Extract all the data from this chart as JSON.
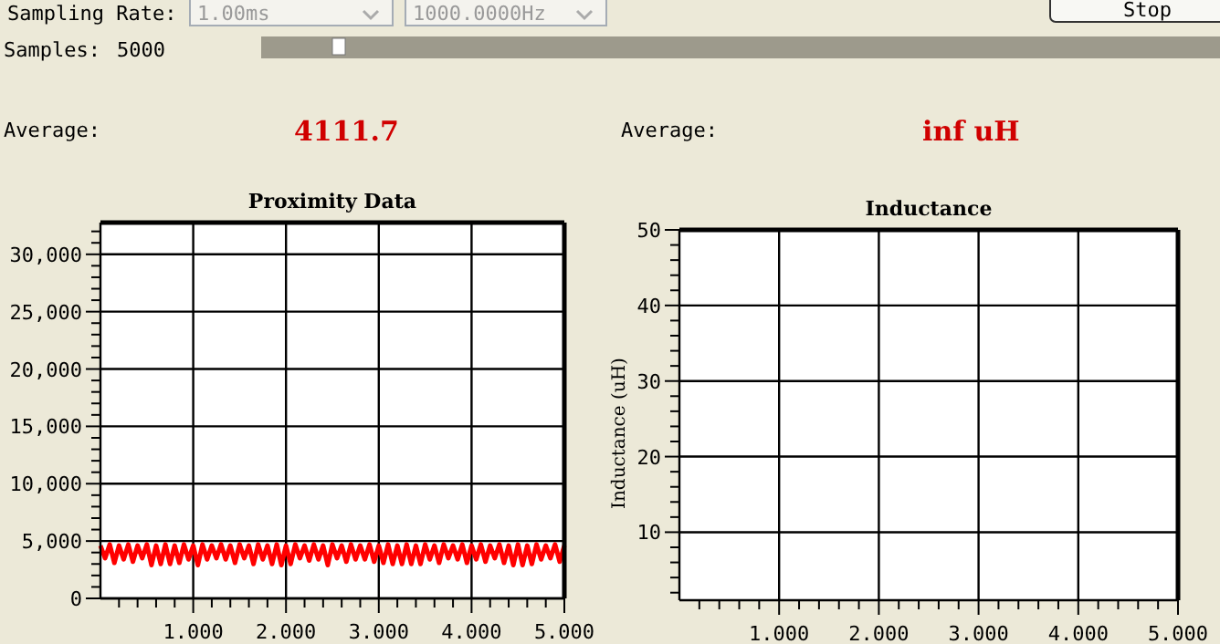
{
  "chart_data": [
    {
      "type": "other",
      "annotations": [
        "Sampling Rate:",
        "1.00ms",
        "1000.0000Hz",
        "Stop",
        "Samples:",
        "5000",
        "Average:",
        "4111.7",
        "Average:",
        "inf uH"
      ]
    },
    {
      "type": "line",
      "title": "Proximity Data",
      "xlim": [
        0,
        5
      ],
      "ylim": [
        0,
        32768
      ],
      "xticks": [
        {
          "value": 0.2,
          "label": null
        },
        {
          "value": 0.4,
          "label": null
        },
        {
          "value": 0.6,
          "label": null
        },
        {
          "value": 0.8,
          "label": null
        },
        {
          "value": 1,
          "label": "1.000"
        },
        {
          "value": 1.2,
          "label": null
        },
        {
          "value": 1.4,
          "label": null
        },
        {
          "value": 1.6,
          "label": null
        },
        {
          "value": 1.8,
          "label": null
        },
        {
          "value": 2,
          "label": "2.000"
        },
        {
          "value": 2.2,
          "label": null
        },
        {
          "value": 2.4,
          "label": null
        },
        {
          "value": 2.6,
          "label": null
        },
        {
          "value": 2.8,
          "label": null
        },
        {
          "value": 3,
          "label": "3.000"
        },
        {
          "value": 3.2,
          "label": null
        },
        {
          "value": 3.4,
          "label": null
        },
        {
          "value": 3.6,
          "label": null
        },
        {
          "value": 3.8,
          "label": null
        },
        {
          "value": 4,
          "label": "4.000"
        },
        {
          "value": 4.2,
          "label": null
        },
        {
          "value": 4.4,
          "label": null
        },
        {
          "value": 4.6,
          "label": null
        },
        {
          "value": 4.8,
          "label": null
        },
        {
          "value": 5,
          "label": "5.000"
        }
      ],
      "yticks": [
        0,
        {
          "value": 1000,
          "label": null
        },
        {
          "value": 2000,
          "label": null
        },
        {
          "value": 3000,
          "label": null
        },
        {
          "value": 4000,
          "label": null
        },
        {
          "value": 5000,
          "label": "5,000"
        },
        {
          "value": 6000,
          "label": null
        },
        {
          "value": 7000,
          "label": null
        },
        {
          "value": 8000,
          "label": null
        },
        {
          "value": 9000,
          "label": null
        },
        {
          "value": 10000,
          "label": "10,000"
        },
        {
          "value": 11000,
          "label": null
        },
        {
          "value": 12000,
          "label": null
        },
        {
          "value": 13000,
          "label": null
        },
        {
          "value": 14000,
          "label": null
        },
        {
          "value": 15000,
          "label": "15,000"
        },
        {
          "value": 16000,
          "label": null
        },
        {
          "value": 17000,
          "label": null
        },
        {
          "value": 18000,
          "label": null
        },
        {
          "value": 19000,
          "label": null
        },
        {
          "value": 20000,
          "label": "20,000"
        },
        {
          "value": 21000,
          "label": null
        },
        {
          "value": 22000,
          "label": null
        },
        {
          "value": 23000,
          "label": null
        },
        {
          "value": 24000,
          "label": null
        },
        {
          "value": 25000,
          "label": "25,000"
        },
        {
          "value": 26000,
          "label": null
        },
        {
          "value": 27000,
          "label": null
        },
        {
          "value": 28000,
          "label": null
        },
        {
          "value": 29000,
          "label": null
        },
        {
          "value": 30000,
          "label": "30,000"
        },
        {
          "value": 31000,
          "label": null
        },
        {
          "value": 32000,
          "label": null
        }
      ],
      "grid": true,
      "marker": "none",
      "line_style": "solid",
      "series": [
        {
          "color": "#ff0000",
          "x": [
            0,
            0.05,
            0.1,
            0.15,
            0.2,
            0.25,
            0.3,
            0.35,
            0.4,
            0.45,
            0.5,
            0.55,
            0.6,
            0.65,
            0.7,
            0.75,
            0.8,
            0.85,
            0.9,
            0.95,
            1,
            1.05,
            1.1,
            1.15,
            1.2,
            1.25,
            1.3,
            1.35,
            1.4,
            1.45,
            1.5,
            1.55,
            1.6,
            1.65,
            1.7,
            1.75,
            1.8,
            1.85,
            1.9,
            1.95,
            2,
            2.05,
            2.1,
            2.15,
            2.2,
            2.25,
            2.3,
            2.35,
            2.4,
            2.45,
            2.5,
            2.55,
            2.6,
            2.65,
            2.7,
            2.75,
            2.8,
            2.85,
            2.9,
            2.95,
            3,
            3.05,
            3.1,
            3.15,
            3.2,
            3.25,
            3.3,
            3.35,
            3.4,
            3.45,
            3.5,
            3.55,
            3.6,
            3.65,
            3.7,
            3.75,
            3.8,
            3.85,
            3.9,
            3.95,
            4,
            4.05,
            4.1,
            4.15,
            4.2,
            4.25,
            4.3,
            4.35,
            4.4,
            4.45,
            4.5,
            4.55,
            4.6,
            4.65,
            4.7,
            4.75,
            4.8,
            4.85,
            4.9,
            4.95,
            5
          ],
          "values": [
            4600,
            3500,
            4700,
            3100,
            4600,
            3400,
            4700,
            3200,
            4600,
            3500,
            4700,
            2900,
            4600,
            3000,
            4700,
            3000,
            4600,
            3100,
            4700,
            3400,
            4600,
            2900,
            4700,
            3400,
            4600,
            3500,
            4700,
            3400,
            4600,
            3100,
            4700,
            3500,
            4600,
            3000,
            4700,
            3400,
            4600,
            3000,
            4700,
            2900,
            4600,
            3000,
            4700,
            3500,
            4600,
            3300,
            4700,
            3400,
            4600,
            2900,
            4700,
            3500,
            4600,
            3200,
            4700,
            3400,
            4600,
            3400,
            4700,
            3200,
            4600,
            3100,
            4700,
            3000,
            4600,
            3000,
            4700,
            3000,
            4600,
            3000,
            4700,
            3400,
            4600,
            3100,
            4700,
            3500,
            4600,
            3400,
            4700,
            3100,
            4600,
            3400,
            4700,
            3200,
            4600,
            3500,
            4700,
            3100,
            4600,
            2900,
            4700,
            2900,
            4600,
            3000,
            4700,
            3400,
            4600,
            3500,
            4700,
            3200,
            4600
          ]
        }
      ]
    },
    {
      "type": "line",
      "title": "Inductance",
      "ylabel": "Inductance (uH)",
      "xlim": [
        0,
        5
      ],
      "ylim": [
        1,
        50
      ],
      "xticks": [
        {
          "value": 0.2,
          "label": null
        },
        {
          "value": 0.4,
          "label": null
        },
        {
          "value": 0.6,
          "label": null
        },
        {
          "value": 0.8,
          "label": null
        },
        {
          "value": 1,
          "label": "1.000"
        },
        {
          "value": 1.2,
          "label": null
        },
        {
          "value": 1.4,
          "label": null
        },
        {
          "value": 1.6,
          "label": null
        },
        {
          "value": 1.8,
          "label": null
        },
        {
          "value": 2,
          "label": "2.000"
        },
        {
          "value": 2.2,
          "label": null
        },
        {
          "value": 2.4,
          "label": null
        },
        {
          "value": 2.6,
          "label": null
        },
        {
          "value": 2.8,
          "label": null
        },
        {
          "value": 3,
          "label": "3.000"
        },
        {
          "value": 3.2,
          "label": null
        },
        {
          "value": 3.4,
          "label": null
        },
        {
          "value": 3.6,
          "label": null
        },
        {
          "value": 3.8,
          "label": null
        },
        {
          "value": 4,
          "label": "4.000"
        },
        {
          "value": 4.2,
          "label": null
        },
        {
          "value": 4.4,
          "label": null
        },
        {
          "value": 4.6,
          "label": null
        },
        {
          "value": 4.8,
          "label": null
        },
        {
          "value": 5,
          "label": "5.000"
        }
      ],
      "yticks": [
        {
          "value": 2,
          "label": null
        },
        {
          "value": 4,
          "label": null
        },
        {
          "value": 6,
          "label": null
        },
        {
          "value": 8,
          "label": null
        },
        10,
        {
          "value": 12,
          "label": null
        },
        {
          "value": 14,
          "label": null
        },
        {
          "value": 16,
          "label": null
        },
        {
          "value": 18,
          "label": null
        },
        20,
        {
          "value": 22,
          "label": null
        },
        {
          "value": 24,
          "label": null
        },
        {
          "value": 26,
          "label": null
        },
        {
          "value": 28,
          "label": null
        },
        30,
        {
          "value": 32,
          "label": null
        },
        {
          "value": 34,
          "label": null
        },
        {
          "value": 36,
          "label": null
        },
        {
          "value": 38,
          "label": null
        },
        40,
        {
          "value": 42,
          "label": null
        },
        {
          "value": 44,
          "label": null
        },
        {
          "value": 46,
          "label": null
        },
        {
          "value": 48,
          "label": null
        },
        50
      ],
      "grid": true
    }
  ]
}
